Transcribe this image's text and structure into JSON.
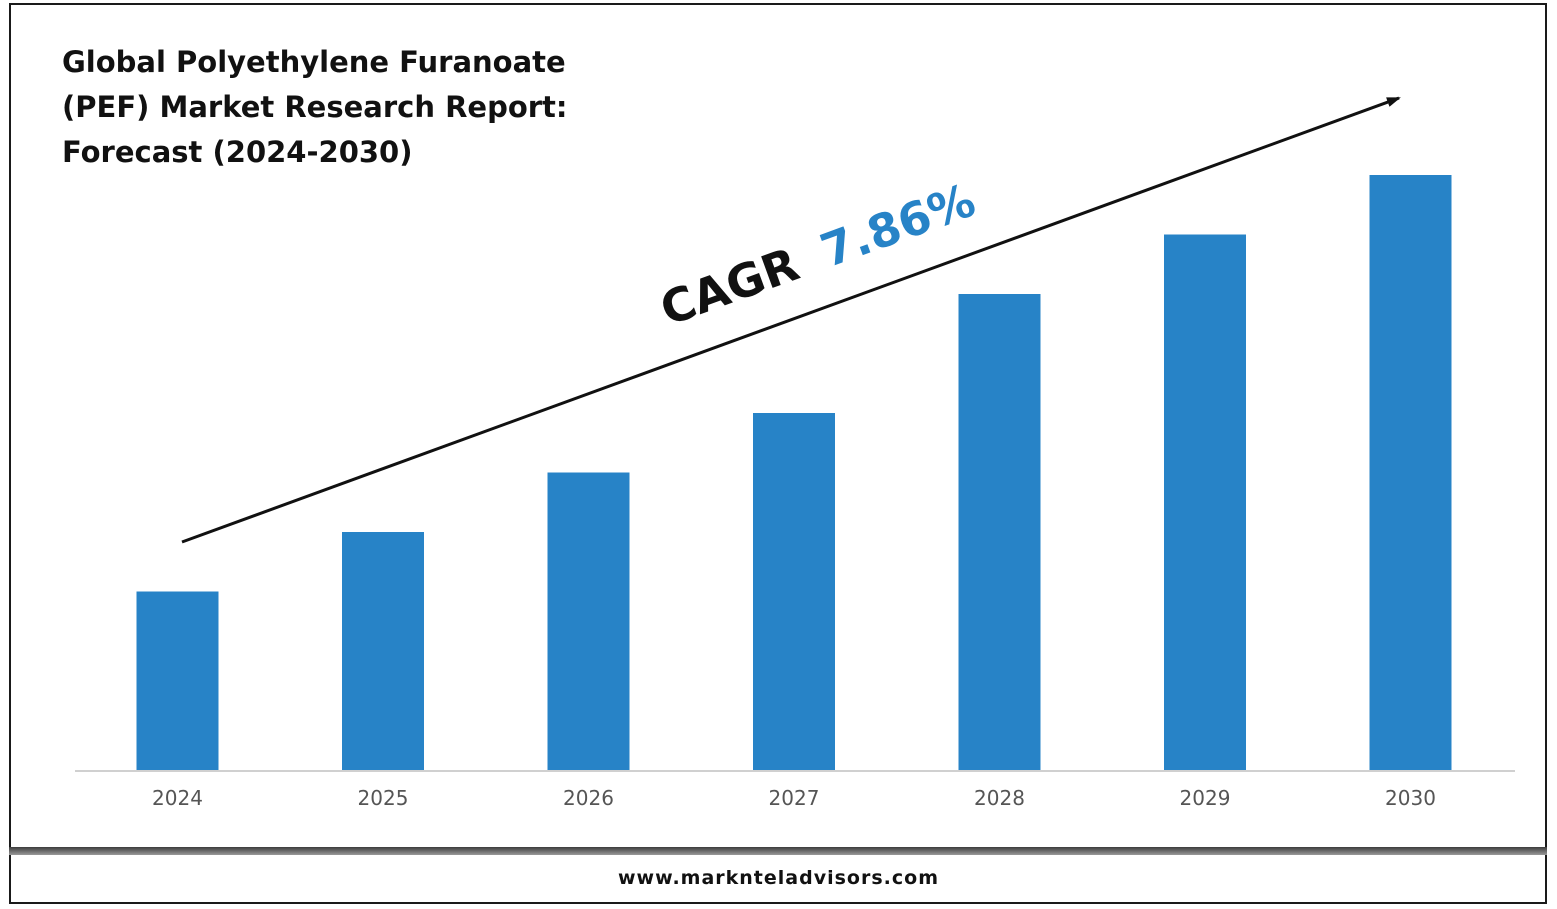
{
  "chart_data": {
    "type": "bar",
    "title": "Global Polyethylene Furanoate (PEF) Market Research Report: Forecast (2024-2030)",
    "categories": [
      "2024",
      "2025",
      "2026",
      "2027",
      "2028",
      "2029",
      "2030"
    ],
    "values": [
      30,
      40,
      50,
      60,
      80,
      90,
      100
    ],
    "ylim": [
      0,
      100
    ],
    "grid": false,
    "legend": "none",
    "bar_color": "#2783c7",
    "annotation": {
      "label": "CAGR",
      "value": "7.86%",
      "label_color": "#111111",
      "value_color": "#2783c7"
    }
  },
  "footer": {
    "url": "www.marknteladvisors.com"
  }
}
